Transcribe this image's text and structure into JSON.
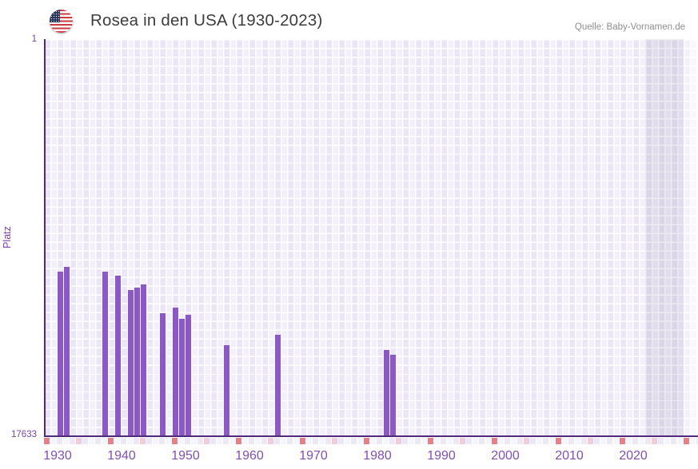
{
  "header": {
    "title": "Rosea in den USA (1930-2023)",
    "flag_icon": "usa-flag-icon",
    "source": "Quelle: Baby-Vornamen.de"
  },
  "y_axis": {
    "label": "Platz",
    "top_tick": "1",
    "bottom_tick": "17633"
  },
  "x_axis": {
    "ticks": [
      "1930",
      "1940",
      "1950",
      "1960",
      "1970",
      "1980",
      "1990",
      "2000",
      "2010",
      "2020"
    ]
  },
  "chart_data": {
    "type": "bar",
    "title": "Rosea in den USA (1930-2023)",
    "xlabel": "",
    "ylabel": "Platz",
    "xlim": [
      1930,
      2023
    ],
    "ylim": [
      1,
      17633
    ],
    "y_axis_inverted": true,
    "grid": true,
    "series": [
      {
        "name": "Rosea",
        "points": [
          {
            "year": 1932,
            "rank": 10347
          },
          {
            "year": 1933,
            "rank": 10144
          },
          {
            "year": 1939,
            "rank": 10357
          },
          {
            "year": 1941,
            "rank": 10525
          },
          {
            "year": 1943,
            "rank": 11155
          },
          {
            "year": 1944,
            "rank": 11048
          },
          {
            "year": 1945,
            "rank": 10906
          },
          {
            "year": 1948,
            "rank": 12199
          },
          {
            "year": 1950,
            "rank": 11939
          },
          {
            "year": 1951,
            "rank": 12438
          },
          {
            "year": 1952,
            "rank": 12281
          },
          {
            "year": 1958,
            "rank": 13635
          },
          {
            "year": 1966,
            "rank": 13172
          },
          {
            "year": 1983,
            "rank": 13838
          },
          {
            "year": 1984,
            "rank": 14041
          }
        ]
      }
    ]
  },
  "colors": {
    "bar": "#8b58c6",
    "axis_line": "#50297c",
    "tick_text": "#8250b4",
    "decade_marker": "#e5808a",
    "half_decade_marker": "#f3ccd9",
    "marker_even": "#ece8f7",
    "marker_odd": "#f6f4fc"
  }
}
